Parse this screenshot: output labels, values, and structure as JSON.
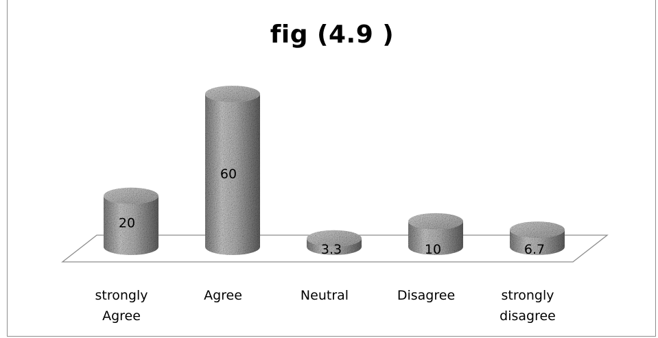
{
  "chart_data": {
    "type": "bar",
    "style": "3d-cylinder",
    "title": "fig (4.9 )",
    "xlabel": "",
    "ylabel": "",
    "categories": [
      "strongly Agree",
      "Agree",
      "Neutral",
      "Disagree",
      "strongly disagree"
    ],
    "category_lines": [
      [
        "strongly",
        "Agree"
      ],
      [
        "Agree"
      ],
      [
        "Neutral"
      ],
      [
        "Disagree"
      ],
      [
        "strongly",
        "disagree"
      ]
    ],
    "values": [
      20,
      60,
      3.3,
      10,
      6.7
    ],
    "data_labels": [
      "20",
      "60",
      "3.3",
      "10",
      "6.7"
    ],
    "ylim": [
      0,
      60
    ],
    "grid": false,
    "legend": "none",
    "colors": {
      "bar_base": "#8a8a8a",
      "bar_light": "#c4c4c4",
      "bar_dark": "#4e4e4e",
      "floor_stroke": "#8c8c8c"
    }
  }
}
